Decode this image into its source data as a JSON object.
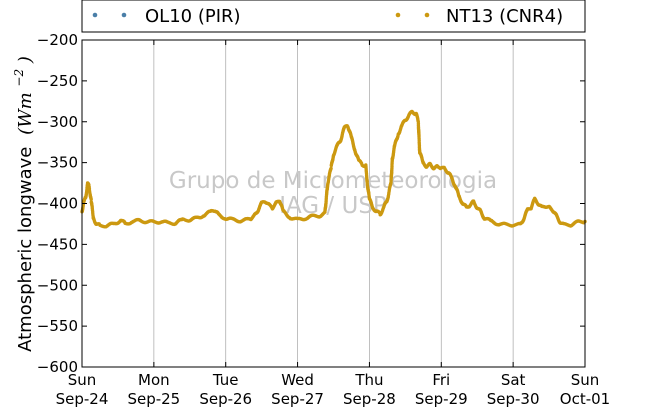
{
  "chart_data": {
    "type": "scatter",
    "ylabel": "Atmospheric longwave",
    "ylabel_unit": "(Wm",
    "ylabel_unit_exp": "−2",
    "ylabel_unit_close": ")",
    "ylim": [
      -600,
      -200
    ],
    "yticks": [
      -200,
      -250,
      -300,
      -350,
      -400,
      -450,
      -500,
      -550,
      -600
    ],
    "xlim": [
      0,
      7
    ],
    "xticks": [
      {
        "x": 0,
        "day": "Sun",
        "date": "Sep-24"
      },
      {
        "x": 1,
        "day": "Mon",
        "date": "Sep-25"
      },
      {
        "x": 2,
        "day": "Tue",
        "date": "Sep-26"
      },
      {
        "x": 3,
        "day": "Wed",
        "date": "Sep-27"
      },
      {
        "x": 4,
        "day": "Thu",
        "date": "Sep-28"
      },
      {
        "x": 5,
        "day": "Fri",
        "date": "Sep-29"
      },
      {
        "x": 6,
        "day": "Sat",
        "date": "Sep-30"
      },
      {
        "x": 7,
        "day": "Sun",
        "date": "Oct-01"
      }
    ],
    "grid": "x-vertical",
    "legend_position": "top-outside",
    "watermark": [
      "Grupo de Micrometeorologia",
      "IAG / USP"
    ],
    "series": [
      {
        "name": "OL10 (PIR)",
        "color": "#4a7fa8",
        "points": []
      },
      {
        "name": "NT13 (CNR4)",
        "color": "#cc9911",
        "points": [
          [
            0.0,
            -410
          ],
          [
            0.02,
            -400
          ],
          [
            0.05,
            -393
          ],
          [
            0.08,
            -375
          ],
          [
            0.1,
            -380
          ],
          [
            0.13,
            -398
          ],
          [
            0.16,
            -418
          ],
          [
            0.2,
            -425
          ],
          [
            0.25,
            -427
          ],
          [
            0.35,
            -427
          ],
          [
            0.45,
            -425
          ],
          [
            0.55,
            -420
          ],
          [
            0.6,
            -425
          ],
          [
            0.7,
            -422
          ],
          [
            0.8,
            -421
          ],
          [
            0.9,
            -422
          ],
          [
            1.0,
            -423
          ],
          [
            1.1,
            -422
          ],
          [
            1.2,
            -424
          ],
          [
            1.3,
            -424
          ],
          [
            1.4,
            -420
          ],
          [
            1.5,
            -420
          ],
          [
            1.6,
            -418
          ],
          [
            1.7,
            -414
          ],
          [
            1.8,
            -410
          ],
          [
            1.85,
            -408
          ],
          [
            1.9,
            -414
          ],
          [
            2.0,
            -418
          ],
          [
            2.1,
            -420
          ],
          [
            2.2,
            -421
          ],
          [
            2.3,
            -420
          ],
          [
            2.35,
            -418
          ],
          [
            2.4,
            -415
          ],
          [
            2.45,
            -408
          ],
          [
            2.5,
            -400
          ],
          [
            2.55,
            -397
          ],
          [
            2.6,
            -402
          ],
          [
            2.65,
            -405
          ],
          [
            2.7,
            -400
          ],
          [
            2.75,
            -396
          ],
          [
            2.8,
            -410
          ],
          [
            2.9,
            -417
          ],
          [
            3.0,
            -420
          ],
          [
            3.1,
            -418
          ],
          [
            3.2,
            -416
          ],
          [
            3.3,
            -415
          ],
          [
            3.38,
            -412
          ],
          [
            3.42,
            -375
          ],
          [
            3.47,
            -355
          ],
          [
            3.5,
            -340
          ],
          [
            3.55,
            -330
          ],
          [
            3.6,
            -322
          ],
          [
            3.65,
            -308
          ],
          [
            3.7,
            -305
          ],
          [
            3.75,
            -320
          ],
          [
            3.8,
            -335
          ],
          [
            3.85,
            -348
          ],
          [
            3.9,
            -352
          ],
          [
            3.95,
            -354
          ],
          [
            3.97,
            -375
          ],
          [
            4.0,
            -395
          ],
          [
            4.05,
            -405
          ],
          [
            4.1,
            -410
          ],
          [
            4.15,
            -413
          ],
          [
            4.2,
            -405
          ],
          [
            4.25,
            -395
          ],
          [
            4.3,
            -375
          ],
          [
            4.32,
            -345
          ],
          [
            4.35,
            -330
          ],
          [
            4.4,
            -315
          ],
          [
            4.45,
            -305
          ],
          [
            4.5,
            -298
          ],
          [
            4.55,
            -292
          ],
          [
            4.6,
            -288
          ],
          [
            4.65,
            -290
          ],
          [
            4.68,
            -300
          ],
          [
            4.7,
            -338
          ],
          [
            4.75,
            -350
          ],
          [
            4.8,
            -355
          ],
          [
            4.85,
            -352
          ],
          [
            4.9,
            -357
          ],
          [
            4.95,
            -355
          ],
          [
            5.0,
            -356
          ],
          [
            5.05,
            -358
          ],
          [
            5.1,
            -362
          ],
          [
            5.15,
            -370
          ],
          [
            5.2,
            -380
          ],
          [
            5.25,
            -392
          ],
          [
            5.3,
            -400
          ],
          [
            5.35,
            -405
          ],
          [
            5.4,
            -402
          ],
          [
            5.45,
            -398
          ],
          [
            5.5,
            -405
          ],
          [
            5.55,
            -410
          ],
          [
            5.6,
            -418
          ],
          [
            5.7,
            -422
          ],
          [
            5.8,
            -425
          ],
          [
            5.9,
            -426
          ],
          [
            6.0,
            -426
          ],
          [
            6.1,
            -426
          ],
          [
            6.15,
            -418
          ],
          [
            6.2,
            -408
          ],
          [
            6.25,
            -405
          ],
          [
            6.3,
            -395
          ],
          [
            6.35,
            -400
          ],
          [
            6.4,
            -405
          ],
          [
            6.45,
            -403
          ],
          [
            6.5,
            -405
          ],
          [
            6.55,
            -408
          ],
          [
            6.6,
            -415
          ],
          [
            6.65,
            -422
          ],
          [
            6.7,
            -426
          ],
          [
            6.8,
            -426
          ],
          [
            6.9,
            -423
          ],
          [
            7.0,
            -422
          ]
        ]
      }
    ]
  }
}
